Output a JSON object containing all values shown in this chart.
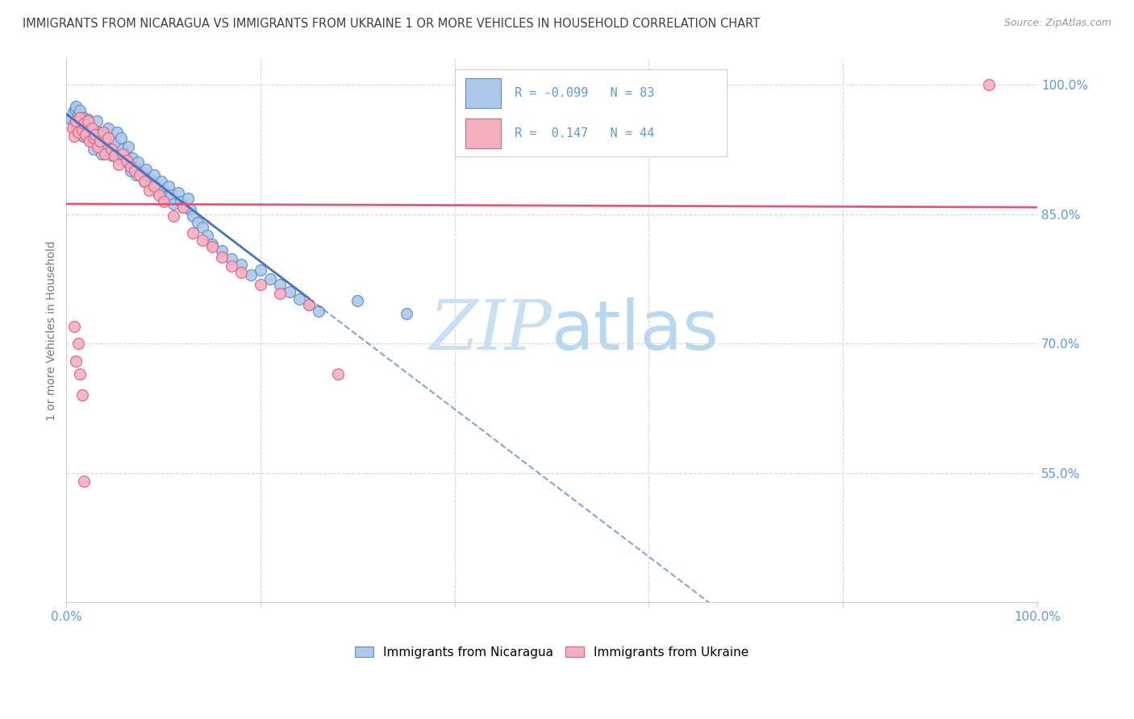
{
  "title": "IMMIGRANTS FROM NICARAGUA VS IMMIGRANTS FROM UKRAINE 1 OR MORE VEHICLES IN HOUSEHOLD CORRELATION CHART",
  "source": "Source: ZipAtlas.com",
  "ylabel": "1 or more Vehicles in Household",
  "xlim": [
    0.0,
    1.0
  ],
  "ylim": [
    0.4,
    1.03
  ],
  "yticks": [
    0.55,
    0.7,
    0.85,
    1.0
  ],
  "ytick_labels": [
    "55.0%",
    "70.0%",
    "85.0%",
    "100.0%"
  ],
  "xticks": [
    0.0,
    0.2,
    0.4,
    0.6,
    0.8,
    1.0
  ],
  "xtick_labels": [
    "0.0%",
    "",
    "",
    "",
    "",
    "100.0%"
  ],
  "nic_R": -0.099,
  "nic_N": 83,
  "ukr_R": 0.147,
  "ukr_N": 44,
  "nic_color": "#adc8e8",
  "ukr_color": "#f5b0c0",
  "nic_edge_color": "#5590d0",
  "ukr_edge_color": "#e06080",
  "nic_line_color": "#4472c4",
  "ukr_line_color": "#e05878",
  "watermark_zip": "ZIP",
  "watermark_atlas": "atlas",
  "watermark_color_zip": "#c8dff5",
  "watermark_color_atlas": "#c8dff5",
  "legend_label_nic": "Immigrants from Nicaragua",
  "legend_label_ukr": "Immigrants from Ukraine",
  "background_color": "#ffffff",
  "grid_color": "#d8d8d8",
  "axis_label_color": "#5b9bd5",
  "title_color": "#404040",
  "nic_x": [
    0.005,
    0.007,
    0.008,
    0.009,
    0.01,
    0.01,
    0.012,
    0.013,
    0.014,
    0.015,
    0.016,
    0.017,
    0.018,
    0.019,
    0.02,
    0.021,
    0.022,
    0.023,
    0.025,
    0.026,
    0.027,
    0.028,
    0.03,
    0.031,
    0.033,
    0.035,
    0.036,
    0.037,
    0.04,
    0.042,
    0.043,
    0.045,
    0.047,
    0.05,
    0.052,
    0.054,
    0.056,
    0.058,
    0.06,
    0.062,
    0.064,
    0.066,
    0.068,
    0.07,
    0.072,
    0.074,
    0.078,
    0.08,
    0.082,
    0.085,
    0.088,
    0.09,
    0.093,
    0.095,
    0.098,
    0.1,
    0.103,
    0.105,
    0.108,
    0.11,
    0.115,
    0.118,
    0.12,
    0.125,
    0.128,
    0.13,
    0.135,
    0.14,
    0.145,
    0.15,
    0.16,
    0.17,
    0.18,
    0.19,
    0.2,
    0.21,
    0.22,
    0.23,
    0.24,
    0.25,
    0.26,
    0.3,
    0.35
  ],
  "nic_y": [
    0.96,
    0.968,
    0.955,
    0.972,
    0.95,
    0.975,
    0.965,
    0.958,
    0.97,
    0.948,
    0.955,
    0.94,
    0.962,
    0.945,
    0.952,
    0.938,
    0.96,
    0.942,
    0.955,
    0.935,
    0.948,
    0.925,
    0.942,
    0.958,
    0.93,
    0.945,
    0.92,
    0.935,
    0.94,
    0.928,
    0.95,
    0.922,
    0.918,
    0.932,
    0.945,
    0.915,
    0.938,
    0.925,
    0.92,
    0.91,
    0.928,
    0.9,
    0.915,
    0.905,
    0.895,
    0.91,
    0.898,
    0.888,
    0.902,
    0.892,
    0.885,
    0.895,
    0.882,
    0.875,
    0.888,
    0.878,
    0.87,
    0.882,
    0.872,
    0.862,
    0.875,
    0.865,
    0.858,
    0.868,
    0.855,
    0.848,
    0.84,
    0.835,
    0.825,
    0.815,
    0.808,
    0.798,
    0.792,
    0.78,
    0.785,
    0.775,
    0.768,
    0.76,
    0.752,
    0.745,
    0.738,
    0.75,
    0.735
  ],
  "ukr_x": [
    0.006,
    0.008,
    0.01,
    0.012,
    0.014,
    0.016,
    0.018,
    0.02,
    0.022,
    0.024,
    0.026,
    0.028,
    0.03,
    0.032,
    0.035,
    0.038,
    0.04,
    0.043,
    0.046,
    0.05,
    0.054,
    0.058,
    0.062,
    0.066,
    0.07,
    0.075,
    0.08,
    0.085,
    0.09,
    0.095,
    0.1,
    0.11,
    0.12,
    0.13,
    0.14,
    0.15,
    0.16,
    0.17,
    0.18,
    0.2,
    0.22,
    0.25,
    0.28,
    0.95
  ],
  "ukr_y": [
    0.95,
    0.94,
    0.958,
    0.945,
    0.962,
    0.948,
    0.955,
    0.942,
    0.958,
    0.935,
    0.95,
    0.938,
    0.942,
    0.928,
    0.935,
    0.945,
    0.92,
    0.938,
    0.925,
    0.918,
    0.908,
    0.92,
    0.912,
    0.905,
    0.9,
    0.895,
    0.888,
    0.878,
    0.882,
    0.872,
    0.865,
    0.848,
    0.858,
    0.828,
    0.82,
    0.812,
    0.8,
    0.79,
    0.782,
    0.768,
    0.758,
    0.745,
    0.665,
    1.0
  ],
  "ukr_outliers_x": [
    0.008,
    0.01,
    0.012,
    0.014,
    0.016,
    0.018
  ],
  "ukr_outliers_y": [
    0.72,
    0.68,
    0.7,
    0.665,
    0.64,
    0.54
  ]
}
